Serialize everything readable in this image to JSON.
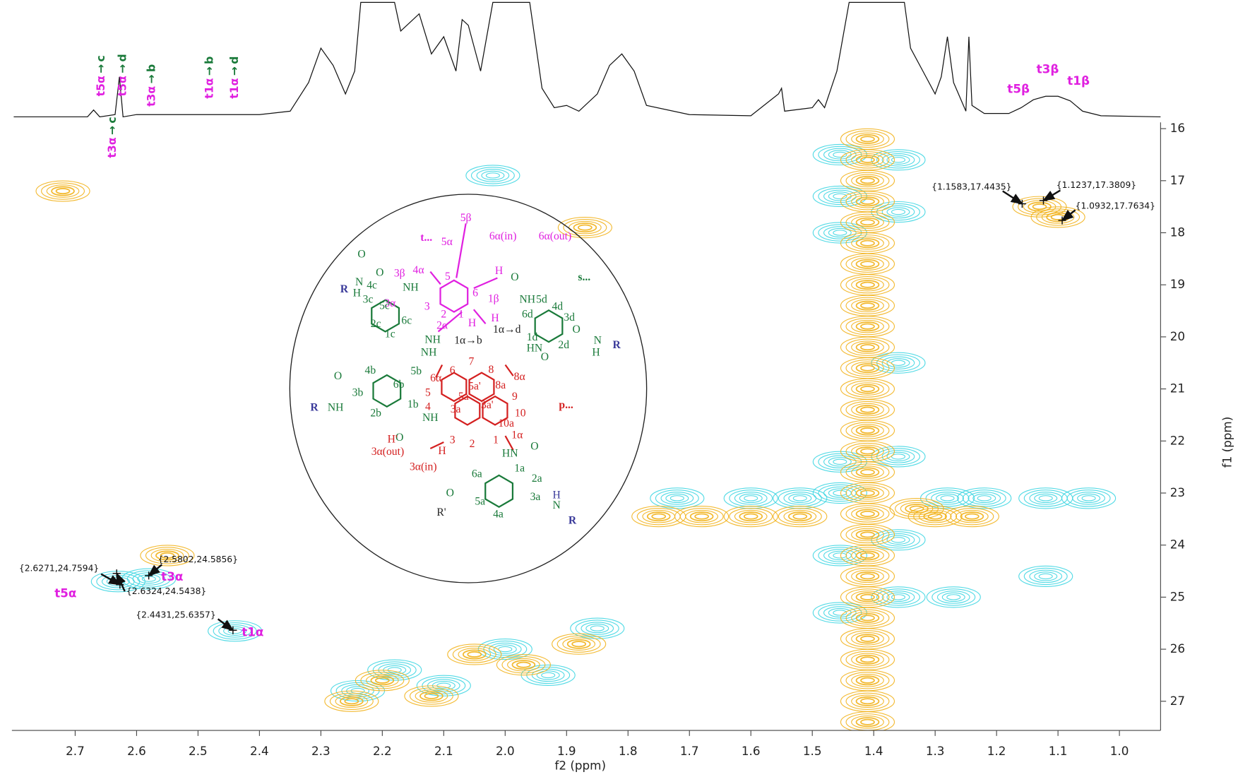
{
  "chart_data": {
    "type": "contour",
    "x_label": "f2 (ppm)",
    "y_label": "f1 (ppm)",
    "xlim": [
      2.803,
      0.933
    ],
    "ylim": [
      15.88,
      27.56
    ],
    "xticks": [
      2.7,
      2.6,
      2.5,
      2.4,
      2.3,
      2.2,
      2.1,
      {
        "value": 2,
        "label": "2.0"
      },
      1.9,
      1.8,
      1.7,
      1.6,
      1.5,
      1.4,
      1.3,
      1.2,
      1.1,
      {
        "value": 1,
        "label": "1.0"
      }
    ],
    "yticks": [
      16,
      17,
      18,
      19,
      20,
      21,
      22,
      23,
      24,
      25,
      26,
      27
    ],
    "projection": {
      "color": "#111111",
      "x": [
        2.8,
        2.68,
        2.67,
        2.66,
        2.635,
        2.628,
        2.622,
        2.6,
        2.4,
        2.35,
        2.32,
        2.3,
        2.28,
        2.26,
        2.245,
        2.235,
        2.18,
        2.17,
        2.16,
        2.14,
        2.12,
        2.1,
        2.08,
        2.07,
        2.06,
        2.04,
        2.02,
        1.96,
        1.94,
        1.92,
        1.9,
        1.88,
        1.85,
        1.83,
        1.81,
        1.79,
        1.77,
        1.7,
        1.6,
        1.555,
        1.55,
        1.545,
        1.5,
        1.49,
        1.48,
        1.46,
        1.44,
        1.35,
        1.34,
        1.32,
        1.3,
        1.29,
        1.28,
        1.27,
        1.25,
        1.245,
        1.24,
        1.22,
        1.18,
        1.16,
        1.14,
        1.12,
        1.1,
        1.08,
        1.06,
        1.03,
        0.933
      ],
      "values": [
        0,
        0,
        6,
        0,
        2,
        35,
        0,
        2,
        2,
        5,
        30,
        60,
        45,
        20,
        40,
        100,
        100,
        75,
        80,
        90,
        55,
        70,
        40,
        85,
        80,
        40,
        100,
        100,
        25,
        8,
        10,
        5,
        20,
        45,
        55,
        40,
        10,
        2,
        1,
        20,
        25,
        5,
        8,
        15,
        8,
        40,
        100,
        100,
        60,
        40,
        20,
        35,
        70,
        30,
        5,
        70,
        10,
        3,
        3,
        8,
        15,
        18,
        18,
        14,
        5,
        1,
        0
      ]
    },
    "series": [
      {
        "color": "#3fd6e2",
        "x": [
          1.455,
          1.455,
          1.455,
          1.455,
          1.455,
          1.455,
          1.455,
          1.36,
          1.36,
          1.36,
          1.36,
          1.36,
          1.36,
          1.72,
          1.6,
          1.52,
          1.28,
          1.22,
          1.12,
          1.05,
          2.63,
          2.58,
          2.44,
          1.12,
          2.18,
          2.1,
          2.0,
          1.93,
          1.85,
          2.24,
          2.02,
          1.27
        ],
        "values": [
          16.5,
          17.3,
          18.0,
          22.4,
          23.0,
          24.2,
          25.3,
          16.6,
          17.6,
          20.5,
          22.3,
          23.9,
          25.0,
          23.1,
          23.1,
          23.1,
          23.1,
          23.1,
          23.1,
          23.1,
          24.7,
          24.65,
          25.65,
          24.6,
          26.4,
          26.7,
          26.0,
          26.5,
          25.6,
          26.8,
          16.9,
          25.0
        ]
      },
      {
        "color": "#f2b21c",
        "x": [
          1.41,
          1.41,
          1.41,
          1.41,
          1.41,
          1.41,
          1.41,
          1.41,
          1.41,
          1.41,
          1.41,
          1.41,
          1.41,
          1.41,
          1.41,
          1.41,
          1.41,
          1.41,
          1.41,
          1.41,
          1.41,
          1.41,
          1.41,
          1.41,
          1.41,
          1.41,
          1.41,
          1.41,
          1.41,
          1.13,
          1.1,
          1.75,
          1.68,
          1.6,
          1.52,
          1.3,
          1.24,
          2.2,
          2.12,
          2.05,
          1.97,
          1.88,
          2.25,
          2.72,
          2.55,
          1.87,
          1.33
        ],
        "values": [
          16.2,
          16.6,
          17.0,
          17.4,
          17.8,
          18.2,
          18.6,
          19.0,
          19.4,
          19.8,
          20.2,
          20.6,
          21.0,
          21.4,
          21.8,
          22.2,
          22.6,
          23.0,
          23.4,
          23.8,
          24.2,
          24.6,
          25.0,
          25.4,
          25.8,
          26.2,
          26.6,
          27.0,
          27.4,
          17.5,
          17.7,
          23.45,
          23.45,
          23.45,
          23.45,
          23.45,
          23.45,
          26.6,
          26.9,
          26.1,
          26.3,
          25.9,
          27.0,
          17.2,
          24.2,
          17.9,
          23.3
        ]
      }
    ],
    "peaks": [
      {
        "x": 2.6271,
        "y": 24.7594,
        "label": "{2.6271,24.7594}"
      },
      {
        "x": 2.5802,
        "y": 24.5856,
        "label": "{2.5802,24.5856}"
      },
      {
        "x": 2.6324,
        "y": 24.5438,
        "label": "{2.6324,24.5438}"
      },
      {
        "x": 2.4431,
        "y": 25.6357,
        "label": "{2.4431,25.6357}"
      },
      {
        "x": 1.1583,
        "y": 17.4435,
        "label": "{1.1583,17.4435}"
      },
      {
        "x": 1.1237,
        "y": 17.3809,
        "label": "{1.1237,17.3809}"
      },
      {
        "x": 1.0932,
        "y": 17.7634,
        "label": "{1.0932,17.7634}"
      }
    ],
    "peak_names": [
      "t5α",
      "t3α",
      "t1α",
      "t5β",
      "t3β",
      "t1β"
    ],
    "spectrum_labels": [
      {
        "from": "t5α",
        "arrow": "→",
        "to": "c"
      },
      {
        "from": "t5α",
        "arrow": "→",
        "to": "d"
      },
      {
        "from": "t3α",
        "arrow": "→",
        "to": "b"
      },
      {
        "from": "t1α",
        "arrow": "→",
        "to": "b"
      },
      {
        "from": "t1α",
        "arrow": "→",
        "to": "d"
      },
      {
        "from": "t3α",
        "arrow": "→",
        "to": "c"
      }
    ],
    "structure": {
      "labels": [
        {
          "text": "t...",
          "color": "#e020e0"
        },
        {
          "text": "5β",
          "color": "#e020e0"
        },
        {
          "text": "5α",
          "color": "#e020e0"
        },
        {
          "text": "6α(in)",
          "color": "#e020e0"
        },
        {
          "text": "6α(out)",
          "color": "#e020e0"
        },
        {
          "text": "4α",
          "color": "#e020e0"
        },
        {
          "text": "3β",
          "color": "#e020e0"
        },
        {
          "text": "5",
          "color": "#e020e0"
        },
        {
          "text": "6",
          "color": "#e020e0"
        },
        {
          "text": "3α",
          "color": "#e020e0"
        },
        {
          "text": "3",
          "color": "#e020e0"
        },
        {
          "text": "2",
          "color": "#e020e0"
        },
        {
          "text": "1",
          "color": "#e020e0"
        },
        {
          "text": "1β",
          "color": "#e020e0"
        },
        {
          "text": "H",
          "color": "#e020e0"
        },
        {
          "text": "H",
          "color": "#e020e0"
        },
        {
          "text": "H",
          "color": "#e020e0"
        },
        {
          "text": "2α",
          "color": "#e020e0"
        },
        {
          "text": "1α→b",
          "color": "#222222"
        },
        {
          "text": "1α→d",
          "color": "#222222"
        },
        {
          "text": "O",
          "color": "#1a7a3a"
        },
        {
          "text": "O",
          "color": "#1a7a3a"
        },
        {
          "text": "NH",
          "color": "#1a7a3a"
        },
        {
          "text": "R",
          "color": "#3a3a9a"
        },
        {
          "text": "4c",
          "color": "#1a7a3a"
        },
        {
          "text": "N",
          "color": "#1a7a3a"
        },
        {
          "text": "H",
          "color": "#1a7a3a"
        },
        {
          "text": "3c",
          "color": "#1a7a3a"
        },
        {
          "text": "5c",
          "color": "#1a7a3a"
        },
        {
          "text": "6c",
          "color": "#1a7a3a"
        },
        {
          "text": "2c",
          "color": "#1a7a3a"
        },
        {
          "text": "1c",
          "color": "#1a7a3a"
        },
        {
          "text": "NH",
          "color": "#1a7a3a"
        },
        {
          "text": "NH",
          "color": "#1a7a3a"
        },
        {
          "text": "O",
          "color": "#1a7a3a"
        },
        {
          "text": "NH",
          "color": "#1a7a3a"
        },
        {
          "text": "s...",
          "color": "#1a7a3a"
        },
        {
          "text": "5d",
          "color": "#1a7a3a"
        },
        {
          "text": "4d",
          "color": "#1a7a3a"
        },
        {
          "text": "6d",
          "color": "#1a7a3a"
        },
        {
          "text": "3d",
          "color": "#1a7a3a"
        },
        {
          "text": "1d",
          "color": "#1a7a3a"
        },
        {
          "text": "2d",
          "color": "#1a7a3a"
        },
        {
          "text": "HN",
          "color": "#1a7a3a"
        },
        {
          "text": "O",
          "color": "#1a7a3a"
        },
        {
          "text": "O",
          "color": "#1a7a3a"
        },
        {
          "text": "N",
          "color": "#1a7a3a"
        },
        {
          "text": "H",
          "color": "#1a7a3a"
        },
        {
          "text": "R",
          "color": "#3a3a9a"
        },
        {
          "text": "4b",
          "color": "#1a7a3a"
        },
        {
          "text": "5b",
          "color": "#1a7a3a"
        },
        {
          "text": "6b",
          "color": "#1a7a3a"
        },
        {
          "text": "3b",
          "color": "#1a7a3a"
        },
        {
          "text": "O",
          "color": "#1a7a3a"
        },
        {
          "text": "R",
          "color": "#3a3a9a"
        },
        {
          "text": "NH",
          "color": "#1a7a3a"
        },
        {
          "text": "2b",
          "color": "#1a7a3a"
        },
        {
          "text": "1b",
          "color": "#1a7a3a"
        },
        {
          "text": "NH",
          "color": "#1a7a3a"
        },
        {
          "text": "O",
          "color": "#1a7a3a"
        },
        {
          "text": "H'",
          "color": "#d42020"
        },
        {
          "text": "6",
          "color": "#d42020"
        },
        {
          "text": "7",
          "color": "#d42020"
        },
        {
          "text": "8",
          "color": "#d42020"
        },
        {
          "text": "8α",
          "color": "#d42020"
        },
        {
          "text": "6α",
          "color": "#d42020"
        },
        {
          "text": "5",
          "color": "#d42020"
        },
        {
          "text": "5a'",
          "color": "#d42020"
        },
        {
          "text": "8a",
          "color": "#d42020"
        },
        {
          "text": "5a",
          "color": "#d42020"
        },
        {
          "text": "3a'",
          "color": "#d42020"
        },
        {
          "text": "9",
          "color": "#d42020"
        },
        {
          "text": "4",
          "color": "#d42020"
        },
        {
          "text": "3a",
          "color": "#d42020"
        },
        {
          "text": "10a",
          "color": "#d42020"
        },
        {
          "text": "10",
          "color": "#d42020"
        },
        {
          "text": "1",
          "color": "#d42020"
        },
        {
          "text": "2",
          "color": "#d42020"
        },
        {
          "text": "3",
          "color": "#d42020"
        },
        {
          "text": "3α(out)",
          "color": "#d42020"
        },
        {
          "text": "H",
          "color": "#d42020"
        },
        {
          "text": "3α(in)",
          "color": "#d42020"
        },
        {
          "text": "1α",
          "color": "#d42020"
        },
        {
          "text": "p...",
          "color": "#d42020"
        },
        {
          "text": "HN",
          "color": "#1a7a3a"
        },
        {
          "text": "O",
          "color": "#1a7a3a"
        },
        {
          "text": "1a",
          "color": "#1a7a3a"
        },
        {
          "text": "6a",
          "color": "#1a7a3a"
        },
        {
          "text": "2a",
          "color": "#1a7a3a"
        },
        {
          "text": "3a",
          "color": "#1a7a3a"
        },
        {
          "text": "5a",
          "color": "#1a7a3a"
        },
        {
          "text": "4a",
          "color": "#1a7a3a"
        },
        {
          "text": "O",
          "color": "#1a7a3a"
        },
        {
          "text": "R'",
          "color": "#222222"
        },
        {
          "text": "H",
          "color": "#3a3a9a"
        },
        {
          "text": "N",
          "color": "#1a7a3a"
        },
        {
          "text": "R",
          "color": "#3a3a9a"
        }
      ]
    }
  }
}
